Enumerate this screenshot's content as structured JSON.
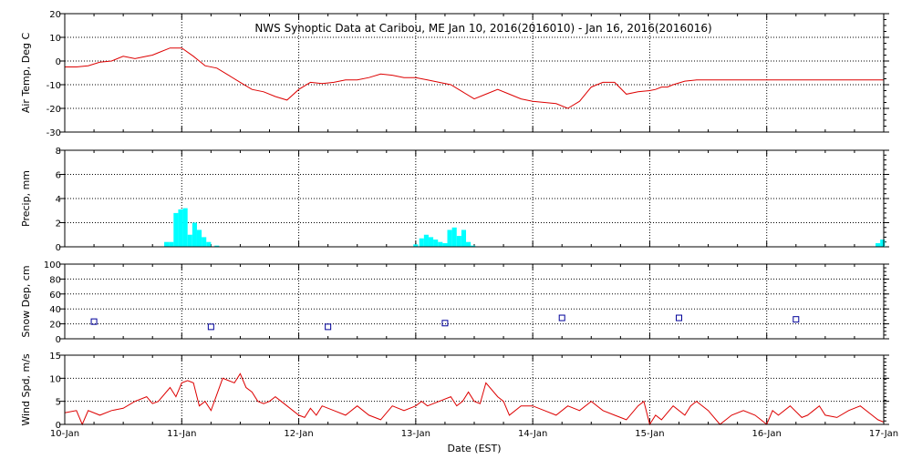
{
  "chart_data": [
    {
      "type": "line",
      "title": "NWS Synoptic Data at Caribou, ME   Jan 10, 2016(2016010) - Jan 16, 2016(2016016)",
      "ylabel": "Air Temp, Deg C",
      "ylim": [
        -30,
        20
      ],
      "yticks": [
        "20",
        "10",
        "0",
        "-10",
        "-20",
        "-30"
      ],
      "xlim": [
        0,
        7
      ],
      "grid": true,
      "color": "#dd0000",
      "series": [
        {
          "x": [
            0.0,
            0.1,
            0.2,
            0.3,
            0.4,
            0.5,
            0.6,
            0.7,
            0.75,
            0.8,
            0.9,
            1.0,
            1.1,
            1.15,
            1.2,
            1.3,
            1.4,
            1.5,
            1.6,
            1.7,
            1.8,
            1.9,
            2.0,
            2.1,
            2.2,
            2.3,
            2.4,
            2.5,
            2.6,
            2.7,
            2.8,
            2.9,
            3.0,
            3.1,
            3.2,
            3.3,
            3.4,
            3.5,
            3.6,
            3.7,
            3.8,
            3.9,
            4.0,
            4.1,
            4.2,
            4.3,
            4.4,
            4.5,
            4.6,
            4.7,
            4.8,
            4.9,
            5.0,
            5.05,
            5.1,
            5.15,
            5.2,
            5.3,
            5.4,
            5.5,
            5.6,
            5.7,
            5.8,
            5.9,
            6.0,
            6.1,
            6.2,
            6.3,
            6.4,
            6.5,
            6.6,
            6.7,
            6.8,
            6.9,
            7.0
          ],
          "values": [
            -2.5,
            -2.5,
            -2,
            -0.5,
            0,
            2,
            1,
            2,
            2.5,
            3.5,
            5.5,
            5.5,
            2,
            0,
            -2,
            -3,
            -6,
            -9,
            -12,
            -13,
            -15,
            -16.5,
            -12,
            -9,
            -9.5,
            -9,
            -8,
            -8,
            -7,
            -5.5,
            -6,
            -7,
            -7,
            -8,
            -9,
            -10,
            -13,
            -16,
            -14,
            -12,
            -14,
            -16,
            -17,
            -17.5,
            -18,
            -20,
            -17,
            -11,
            -9,
            -9,
            -14,
            -13,
            -12.5,
            -12,
            -11,
            -11,
            -10,
            -8.5,
            -8,
            -8,
            -8,
            -8,
            -8,
            -8,
            -8,
            -8,
            -8,
            -8,
            -8,
            -8,
            -8,
            -8,
            -8,
            -8,
            -8
          ]
        }
      ]
    },
    {
      "type": "bar",
      "ylabel": "Precip, mm",
      "ylim": [
        0,
        8
      ],
      "yticks": [
        "8",
        "6",
        "4",
        "2",
        "0"
      ],
      "xlim": [
        0,
        7
      ],
      "grid": true,
      "color": "#00ffff",
      "series": [
        {
          "x": [
            0.87,
            0.91,
            0.95,
            0.99,
            1.03,
            1.07,
            1.11,
            1.15,
            1.19,
            1.23,
            1.3,
            2.05,
            2.1,
            2.15,
            2.2,
            2.25,
            2.3,
            3.0,
            3.05,
            3.09,
            3.13,
            3.17,
            3.21,
            3.25,
            3.29,
            3.33,
            3.37,
            3.41,
            3.45,
            3.49,
            3.53,
            6.95,
            6.99
          ],
          "values": [
            0.4,
            0.4,
            2.8,
            3.1,
            3.2,
            1.0,
            2.0,
            1.4,
            0.8,
            0.4,
            0.1,
            0,
            0,
            0,
            0,
            0,
            0,
            0.2,
            0.7,
            1.0,
            0.8,
            0.6,
            0.4,
            0.3,
            1.4,
            1.6,
            0.9,
            1.4,
            0.4,
            0.1,
            0,
            0.3,
            0.6
          ]
        }
      ]
    },
    {
      "type": "scatter",
      "ylabel": "Snow Dep, cm",
      "ylim": [
        0,
        100
      ],
      "yticks": [
        "100",
        "80",
        "60",
        "40",
        "20",
        "0"
      ],
      "xlim": [
        0,
        7
      ],
      "grid": true,
      "color": "#000099",
      "series": [
        {
          "x": [
            0.25,
            1.25,
            2.25,
            3.25,
            4.25,
            5.25,
            6.25
          ],
          "values": [
            23,
            16,
            16,
            21,
            28,
            28,
            26
          ]
        }
      ]
    },
    {
      "type": "line",
      "ylabel": "Wind Spd, m/s",
      "ylim": [
        0,
        15
      ],
      "yticks": [
        "15",
        "10",
        "5",
        "0"
      ],
      "xlim": [
        0,
        7
      ],
      "grid": true,
      "color": "#dd0000",
      "xlabel": "Date (EST)",
      "xticks": [
        "10-Jan",
        "11-Jan",
        "12-Jan",
        "13-Jan",
        "14-Jan",
        "15-Jan",
        "16-Jan",
        "17-Jan"
      ],
      "series": [
        {
          "x": [
            0.0,
            0.1,
            0.15,
            0.2,
            0.3,
            0.4,
            0.5,
            0.6,
            0.7,
            0.75,
            0.8,
            0.9,
            0.95,
            1.0,
            1.05,
            1.1,
            1.15,
            1.2,
            1.25,
            1.3,
            1.35,
            1.4,
            1.45,
            1.5,
            1.55,
            1.6,
            1.65,
            1.7,
            1.75,
            1.8,
            1.85,
            1.9,
            2.0,
            2.05,
            2.1,
            2.15,
            2.2,
            2.3,
            2.4,
            2.5,
            2.6,
            2.7,
            2.8,
            2.9,
            3.0,
            3.05,
            3.1,
            3.2,
            3.3,
            3.35,
            3.4,
            3.45,
            3.5,
            3.55,
            3.6,
            3.7,
            3.75,
            3.8,
            3.9,
            4.0,
            4.1,
            4.2,
            4.3,
            4.4,
            4.5,
            4.6,
            4.7,
            4.8,
            4.9,
            4.95,
            5.0,
            5.05,
            5.1,
            5.2,
            5.3,
            5.35,
            5.4,
            5.5,
            5.6,
            5.7,
            5.8,
            5.9,
            5.95,
            6.0,
            6.05,
            6.1,
            6.2,
            6.3,
            6.35,
            6.4,
            6.45,
            6.5,
            6.6,
            6.7,
            6.8,
            6.9,
            6.95,
            7.0
          ],
          "values": [
            2.5,
            3,
            0,
            3,
            2,
            3,
            3.5,
            5,
            6,
            4.5,
            5,
            8,
            6,
            9,
            9.5,
            9,
            4,
            5,
            3,
            6.5,
            10,
            9.5,
            9,
            11,
            8,
            7,
            5,
            4.5,
            5,
            6,
            5,
            4,
            2,
            1.5,
            3.5,
            2,
            4,
            3,
            2,
            4,
            2,
            1,
            4,
            3,
            4,
            5,
            4,
            5,
            6,
            4,
            5,
            7,
            5,
            4.5,
            9,
            6,
            5,
            2,
            4,
            4,
            3,
            2,
            4,
            3,
            5,
            3,
            2,
            1,
            4,
            5,
            0,
            2,
            1,
            4,
            2,
            4,
            5,
            3,
            0,
            2,
            3,
            2,
            1,
            0,
            3,
            2,
            4,
            1.5,
            2,
            3,
            4,
            2,
            1.5,
            3,
            4,
            2,
            1,
            0.5
          ]
        }
      ]
    }
  ]
}
